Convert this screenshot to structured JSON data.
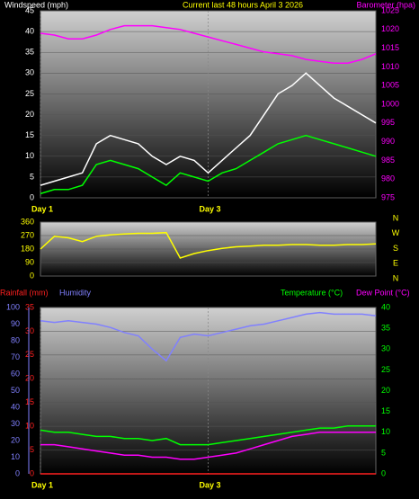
{
  "chart_data": [
    {
      "type": "line",
      "title": "Current last 48 hours April 3 2026",
      "y_label": "Windspeed (mph)",
      "y2_label": "Barometer (hpa)",
      "x": [
        0,
        2,
        4,
        6,
        8,
        10,
        12,
        14,
        16,
        18,
        20,
        22,
        24,
        26,
        28,
        30,
        32,
        34,
        36,
        38,
        40,
        42,
        44,
        46,
        48
      ],
      "xlim": [
        0,
        48
      ],
      "xticks": [
        {
          "value": 0,
          "label": "Day 1"
        },
        {
          "value": 24,
          "label": "Day 3"
        }
      ],
      "ylim": [
        0,
        45
      ],
      "yticks": [
        0,
        5,
        10,
        15,
        20,
        25,
        30,
        35,
        40,
        45
      ],
      "y2lim": [
        975,
        1025
      ],
      "y2ticks": [
        975,
        980,
        985,
        990,
        995,
        1000,
        1005,
        1010,
        1015,
        1020,
        1025
      ],
      "grid": true,
      "series": [
        {
          "color": "#ffffff",
          "values": [
            3,
            4,
            5,
            6,
            13,
            15,
            14,
            13,
            10,
            8,
            10,
            9,
            6,
            9,
            12,
            15,
            20,
            25,
            27,
            30,
            27,
            24,
            22,
            20,
            18
          ]
        },
        {
          "color": "#00ff00",
          "values": [
            1,
            2,
            2,
            3,
            8,
            9,
            8,
            7,
            5,
            3,
            6,
            5,
            4,
            6,
            7,
            9,
            11,
            13,
            14,
            15,
            14,
            13,
            12,
            11,
            10
          ]
        },
        {
          "color": "#ff00ff",
          "axis": "y2",
          "values": [
            1019,
            1018.5,
            1017.5,
            1017.5,
            1018.5,
            1020,
            1021,
            1021,
            1021,
            1020.5,
            1020,
            1019,
            1018,
            1017,
            1016,
            1015,
            1014,
            1013.5,
            1013,
            1012,
            1011.5,
            1011,
            1011,
            1012,
            1013.5
          ]
        }
      ]
    },
    {
      "type": "line",
      "x": [
        0,
        2,
        4,
        6,
        8,
        10,
        12,
        14,
        16,
        18,
        20,
        22,
        24,
        26,
        28,
        30,
        32,
        34,
        36,
        38,
        40,
        42,
        44,
        46,
        48
      ],
      "xlim": [
        0,
        48
      ],
      "ylim": [
        0,
        360
      ],
      "yticks": [
        0,
        90,
        180,
        270,
        360
      ],
      "grid": true,
      "direction_labels": [
        "N",
        "W",
        "S",
        "E",
        "N"
      ],
      "series": [
        {
          "color": "#ffff00",
          "values": [
            180,
            265,
            255,
            230,
            265,
            275,
            280,
            285,
            285,
            290,
            120,
            150,
            170,
            185,
            195,
            200,
            205,
            205,
            210,
            210,
            205,
            205,
            210,
            210,
            215
          ]
        }
      ]
    },
    {
      "type": "line",
      "x": [
        0,
        2,
        4,
        6,
        8,
        10,
        12,
        14,
        16,
        18,
        20,
        22,
        24,
        26,
        28,
        30,
        32,
        34,
        36,
        38,
        40,
        42,
        44,
        46,
        48
      ],
      "xlim": [
        0,
        48
      ],
      "xticks": [
        {
          "value": 0,
          "label": "Day 1"
        },
        {
          "value": 24,
          "label": "Day 3"
        }
      ],
      "ylim": [
        0,
        35
      ],
      "yticks": [
        0,
        5,
        10,
        15,
        20,
        25,
        30,
        35
      ],
      "y3lim": [
        0,
        100
      ],
      "y3ticks": [
        0,
        10,
        20,
        30,
        40,
        50,
        60,
        70,
        80,
        90,
        100
      ],
      "y2lim": [
        0,
        40
      ],
      "y2ticks": [
        0,
        5,
        10,
        15,
        20,
        25,
        30,
        35,
        40
      ],
      "grid": true,
      "series": [
        {
          "name": "Rainfall (mm)",
          "color": "#ff2020",
          "values": [
            0,
            0,
            0,
            0,
            0,
            0,
            0,
            0,
            0,
            0,
            0,
            0,
            0,
            0,
            0,
            0,
            0,
            0,
            0,
            0,
            0,
            0,
            0,
            0,
            0
          ]
        },
        {
          "name": "Humidity",
          "color": "#8080ff",
          "axis": "y3",
          "values": [
            92,
            91,
            92,
            91,
            90,
            88,
            85,
            83,
            75,
            68,
            82,
            84,
            83,
            85,
            87,
            89,
            90,
            92,
            94,
            96,
            97,
            96,
            96,
            96,
            95
          ]
        },
        {
          "name": "Temperature (°C)",
          "color": "#00ff00",
          "axis": "y2",
          "values": [
            10.5,
            10,
            10,
            9.5,
            9,
            9,
            8.5,
            8.5,
            8,
            8.5,
            7,
            7,
            7,
            7.5,
            8,
            8.5,
            9,
            9.5,
            10,
            10.5,
            11,
            11,
            11.5,
            11.5,
            11.5
          ]
        },
        {
          "name": "Dew Point (°C)",
          "color": "#ff00ff",
          "axis": "y2",
          "values": [
            7,
            7,
            6.5,
            6,
            5.5,
            5,
            4.5,
            4.5,
            4,
            4,
            3.5,
            3.5,
            4,
            4.5,
            5,
            6,
            7,
            8,
            9,
            9.5,
            10,
            10,
            10,
            10,
            10
          ]
        }
      ]
    }
  ]
}
